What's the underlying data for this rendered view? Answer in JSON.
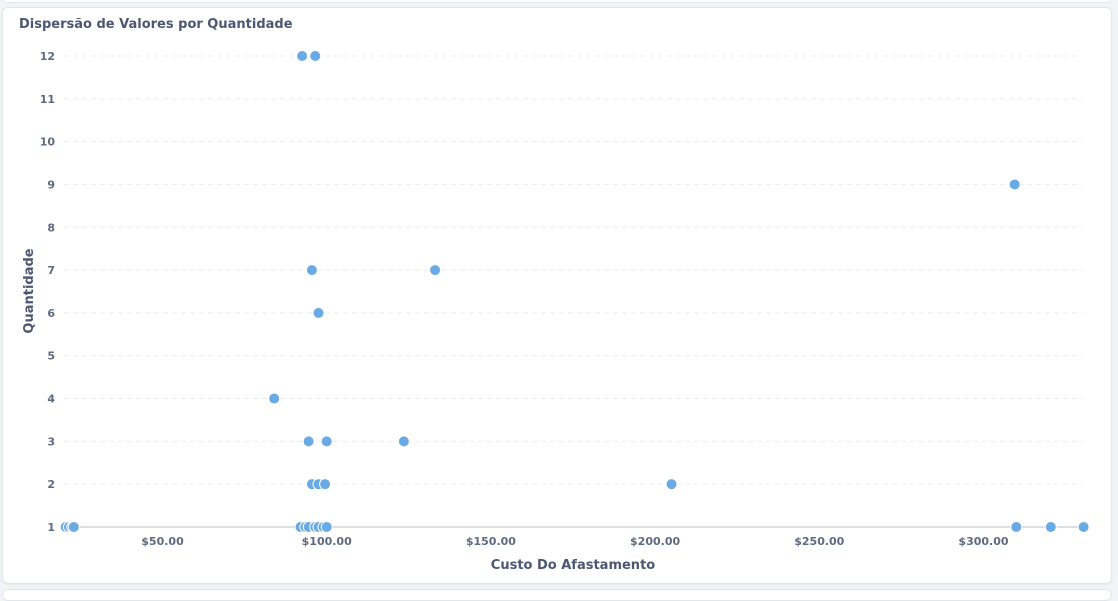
{
  "card": {
    "title": "Dispersão de Valores por Quantidade"
  },
  "chart_data": {
    "type": "scatter",
    "title": "Dispersão de Valores por Quantidade",
    "xlabel": "Custo Do Afastamento",
    "ylabel": "Quantidade",
    "xlim": [
      20,
      330
    ],
    "ylim": [
      1,
      12
    ],
    "x_ticks": [
      50,
      100,
      150,
      200,
      250,
      300
    ],
    "x_tick_labels": [
      "$50.00",
      "$100.00",
      "$150.00",
      "$200.00",
      "$250.00",
      "$300.00"
    ],
    "y_ticks": [
      1,
      2,
      3,
      4,
      5,
      6,
      7,
      8,
      9,
      10,
      11,
      12
    ],
    "y_tick_labels": [
      "1",
      "2",
      "3",
      "4",
      "5",
      "6",
      "7",
      "8",
      "9",
      "10",
      "11",
      "12"
    ],
    "grid": true,
    "point_color": "#6aaae4",
    "points": [
      {
        "x": 20.5,
        "y": 1
      },
      {
        "x": 21.5,
        "y": 1
      },
      {
        "x": 22.5,
        "y": 1
      },
      {
        "x": 23.0,
        "y": 1
      },
      {
        "x": 92.0,
        "y": 1
      },
      {
        "x": 93.5,
        "y": 1
      },
      {
        "x": 94.5,
        "y": 1
      },
      {
        "x": 96.5,
        "y": 1
      },
      {
        "x": 97.5,
        "y": 1
      },
      {
        "x": 99.0,
        "y": 1
      },
      {
        "x": 100.0,
        "y": 1
      },
      {
        "x": 310.0,
        "y": 1
      },
      {
        "x": 320.5,
        "y": 1
      },
      {
        "x": 330.5,
        "y": 1
      },
      {
        "x": 95.5,
        "y": 2
      },
      {
        "x": 97.5,
        "y": 2
      },
      {
        "x": 99.5,
        "y": 2
      },
      {
        "x": 205.0,
        "y": 2
      },
      {
        "x": 94.5,
        "y": 3
      },
      {
        "x": 100.0,
        "y": 3
      },
      {
        "x": 123.5,
        "y": 3
      },
      {
        "x": 84.0,
        "y": 4
      },
      {
        "x": 97.5,
        "y": 6
      },
      {
        "x": 95.5,
        "y": 7
      },
      {
        "x": 133.0,
        "y": 7
      },
      {
        "x": 309.5,
        "y": 9
      },
      {
        "x": 92.5,
        "y": 12
      },
      {
        "x": 96.5,
        "y": 12
      }
    ]
  }
}
